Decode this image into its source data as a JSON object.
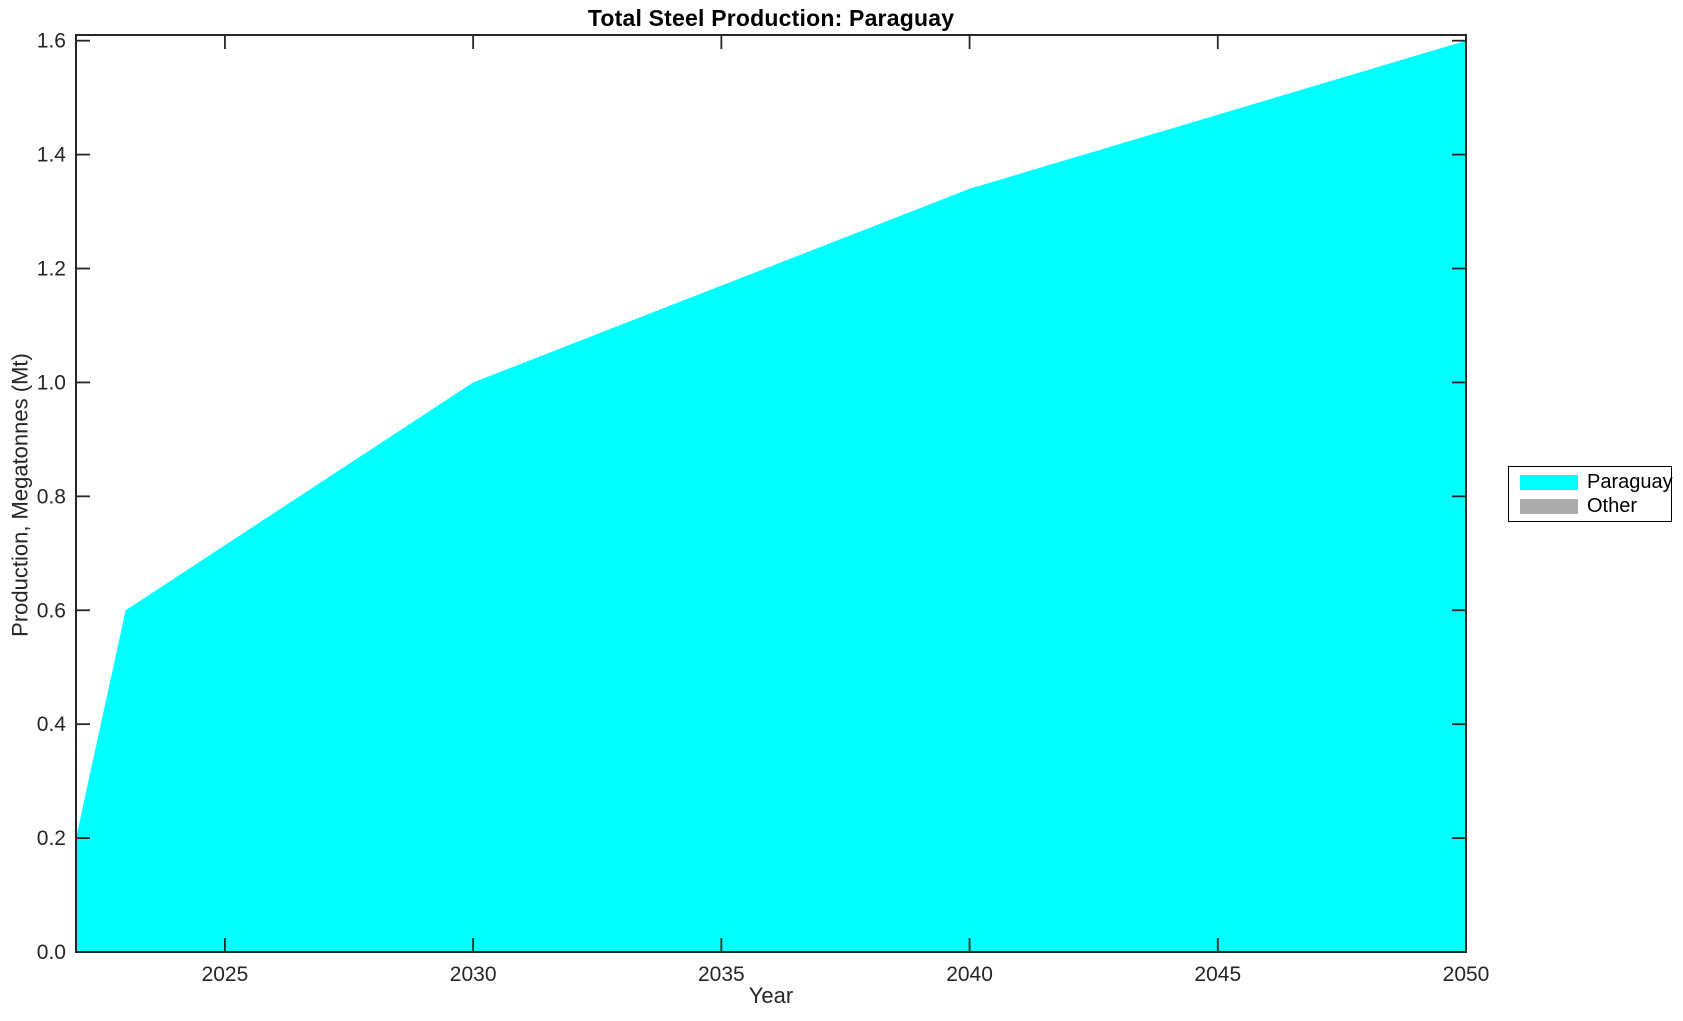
{
  "chart_data": {
    "type": "area",
    "title": "Total Steel Production: Paraguay",
    "xlabel": "Year",
    "ylabel": "Production, Megatonnes (Mt)",
    "xlim": [
      2022,
      2050
    ],
    "ylim": [
      0,
      1.61
    ],
    "grid": false,
    "legend_position": "right-outside-center",
    "xticks": [
      {
        "value": 2025,
        "label": "2025"
      },
      {
        "value": 2030,
        "label": "2030"
      },
      {
        "value": 2035,
        "label": "2035"
      },
      {
        "value": 2040,
        "label": "2040"
      },
      {
        "value": 2045,
        "label": "2045"
      },
      {
        "value": 2050,
        "label": "2050"
      }
    ],
    "yticks": [
      {
        "value": 0.0,
        "label": "0.0"
      },
      {
        "value": 0.2,
        "label": "0.2"
      },
      {
        "value": 0.4,
        "label": "0.4"
      },
      {
        "value": 0.6,
        "label": "0.6"
      },
      {
        "value": 0.8,
        "label": "0.8"
      },
      {
        "value": 1.0,
        "label": "1.0"
      },
      {
        "value": 1.2,
        "label": "1.2"
      },
      {
        "value": 1.4,
        "label": "1.4"
      },
      {
        "value": 1.6,
        "label": "1.6"
      }
    ],
    "series": [
      {
        "name": "Paraguay",
        "color": "#00ffff",
        "x": [
          2022,
          2023,
          2030,
          2040,
          2050
        ],
        "y": [
          0.2,
          0.6,
          1.0,
          1.34,
          1.6
        ]
      },
      {
        "name": "Other",
        "color": "#ababab",
        "x": [
          2022,
          2050
        ],
        "y": [
          0,
          0
        ]
      }
    ]
  },
  "legend": {
    "items": [
      {
        "label": "Paraguay"
      },
      {
        "label": "Other"
      }
    ]
  }
}
